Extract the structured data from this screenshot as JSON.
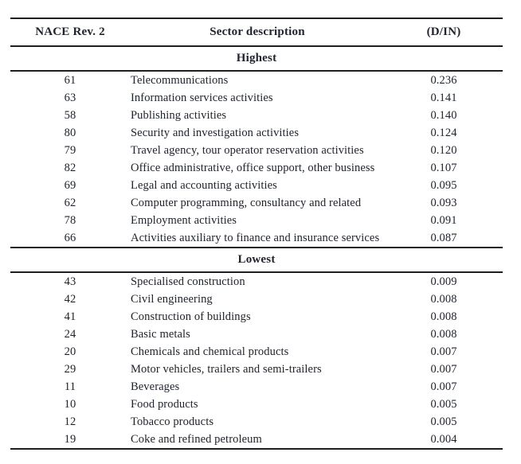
{
  "colors": {
    "text": "#20242c",
    "rule": "#1d1f24",
    "background": "#ffffff"
  },
  "table": {
    "columns": [
      "NACE Rev. 2",
      "Sector description",
      "(D/IN)"
    ],
    "sections": [
      {
        "label": "Highest",
        "rows": [
          {
            "code": "61",
            "description": "Telecommunications",
            "value": "0.236"
          },
          {
            "code": "63",
            "description": "Information services activities",
            "value": "0.141"
          },
          {
            "code": "58",
            "description": "Publishing activities",
            "value": "0.140"
          },
          {
            "code": "80",
            "description": "Security and investigation activities",
            "value": "0.124"
          },
          {
            "code": "79",
            "description": "Travel agency, tour operator reservation activities",
            "value": "0.120"
          },
          {
            "code": "82",
            "description": "Office administrative, office support, other business",
            "value": "0.107"
          },
          {
            "code": "69",
            "description": "Legal and accounting activities",
            "value": "0.095"
          },
          {
            "code": "62",
            "description": "Computer programming, consultancy and related",
            "value": "0.093"
          },
          {
            "code": "78",
            "description": "Employment activities",
            "value": "0.091"
          },
          {
            "code": "66",
            "description": "Activities auxiliary to finance and insurance services",
            "value": "0.087"
          }
        ]
      },
      {
        "label": "Lowest",
        "rows": [
          {
            "code": "43",
            "description": "Specialised construction",
            "value": "0.009"
          },
          {
            "code": "42",
            "description": "Civil engineering",
            "value": "0.008"
          },
          {
            "code": "41",
            "description": "Construction of buildings",
            "value": "0.008"
          },
          {
            "code": "24",
            "description": "Basic metals",
            "value": "0.008"
          },
          {
            "code": "20",
            "description": "Chemicals and chemical products",
            "value": "0.007"
          },
          {
            "code": "29",
            "description": "Motor vehicles, trailers and semi-trailers",
            "value": "0.007"
          },
          {
            "code": "11",
            "description": "Beverages",
            "value": "0.007"
          },
          {
            "code": "10",
            "description": "Food products",
            "value": "0.005"
          },
          {
            "code": "12",
            "description": "Tobacco products",
            "value": "0.005"
          },
          {
            "code": "19",
            "description": "Coke and refined petroleum",
            "value": "0.004"
          }
        ]
      }
    ]
  }
}
